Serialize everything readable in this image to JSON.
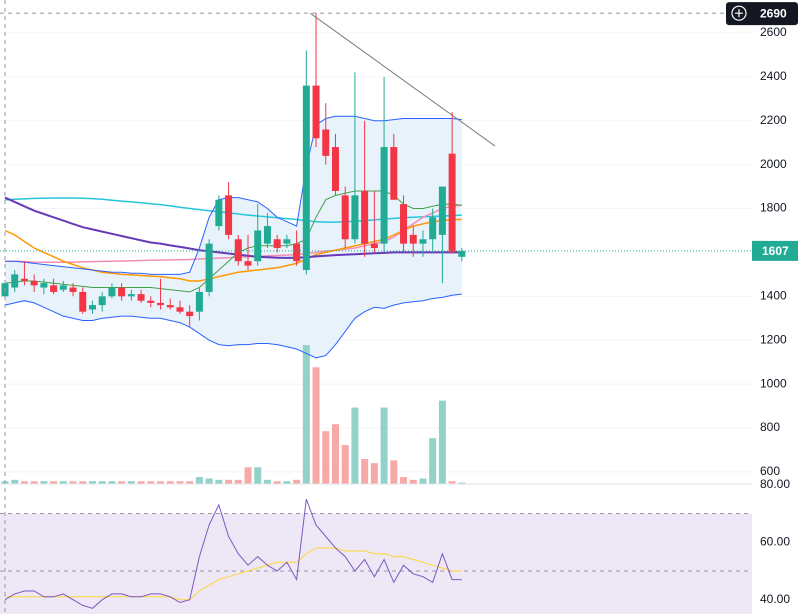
{
  "chart_data": {
    "type": "candlestick",
    "categories": [
      null,
      null,
      null,
      null,
      null,
      null,
      null,
      null,
      null,
      null,
      null,
      null,
      null,
      null,
      null,
      null,
      null,
      null,
      null,
      null,
      null,
      null,
      null,
      null,
      null,
      null,
      null,
      null,
      null,
      null,
      null,
      null,
      null,
      null,
      null,
      null,
      null,
      null,
      null,
      null,
      null,
      null,
      null,
      null,
      null,
      null,
      null,
      null
    ],
    "open": [
      1400,
      1440,
      1480,
      1470,
      1440,
      1450,
      1430,
      1440,
      1420,
      1340,
      1360,
      1400,
      1440,
      1400,
      1410,
      1380,
      1370,
      1360,
      1350,
      1330,
      1330,
      1420,
      1720,
      1860,
      1660,
      1560,
      1560,
      1640,
      1660,
      1640,
      1640,
      1520,
      2360,
      2160,
      2080,
      1860,
      1660,
      1880,
      1640,
      1640,
      2080,
      1820,
      1680,
      1640,
      1660,
      1680,
      2050,
      1580
    ],
    "high": [
      1470,
      1520,
      1560,
      1500,
      1480,
      1480,
      1470,
      1460,
      1440,
      1380,
      1420,
      1460,
      1460,
      1430,
      1430,
      1400,
      1480,
      1390,
      1380,
      1360,
      1440,
      1660,
      1860,
      1920,
      1680,
      1680,
      1820,
      1780,
      1680,
      1680,
      1700,
      2520,
      2690,
      2280,
      2140,
      1900,
      2420,
      2200,
      1880,
      2400,
      2140,
      1860,
      1720,
      1700,
      1800,
      1900,
      2240,
      1620
    ],
    "low": [
      1390,
      1420,
      1450,
      1420,
      1410,
      1410,
      1420,
      1400,
      1320,
      1320,
      1330,
      1390,
      1380,
      1380,
      1370,
      1350,
      1340,
      1340,
      1320,
      1260,
      1290,
      1400,
      1700,
      1660,
      1540,
      1520,
      1540,
      1620,
      1600,
      1620,
      1540,
      1500,
      2080,
      2000,
      1860,
      1620,
      1640,
      1580,
      1600,
      1600,
      1840,
      1600,
      1580,
      1580,
      1600,
      1460,
      1600,
      1560
    ],
    "close": [
      1460,
      1500,
      1470,
      1450,
      1460,
      1420,
      1450,
      1420,
      1330,
      1360,
      1400,
      1440,
      1400,
      1410,
      1380,
      1370,
      1360,
      1350,
      1330,
      1310,
      1420,
      1640,
      1840,
      1680,
      1560,
      1540,
      1700,
      1720,
      1620,
      1660,
      1560,
      2360,
      2120,
      2040,
      1880,
      1660,
      1860,
      1640,
      1620,
      2080,
      1840,
      1640,
      1640,
      1660,
      1760,
      1900,
      1600,
      1607
    ],
    "up_color": "#22ab94",
    "down_color": "#f23645",
    "ylim": [
      545,
      2750
    ],
    "yticks": [
      600,
      800,
      1000,
      1200,
      1400,
      1600,
      1800,
      2000,
      2200,
      2400,
      2600
    ],
    "grid": true,
    "bollinger": {
      "upper": [
        1560,
        1560,
        1555,
        1550,
        1545,
        1540,
        1535,
        1530,
        1525,
        1520,
        1515,
        1510,
        1510,
        1505,
        1505,
        1500,
        1500,
        1500,
        1500,
        1510,
        1620,
        1760,
        1840,
        1850,
        1850,
        1840,
        1830,
        1800,
        1760,
        1740,
        1720,
        1990,
        2180,
        2210,
        2220,
        2220,
        2220,
        2210,
        2200,
        2200,
        2205,
        2210,
        2210,
        2210,
        2210,
        2210,
        2210,
        2205
      ],
      "middle": [
        1460,
        1465,
        1470,
        1470,
        1465,
        1460,
        1455,
        1450,
        1445,
        1440,
        1440,
        1440,
        1440,
        1440,
        1440,
        1440,
        1435,
        1430,
        1425,
        1420,
        1440,
        1480,
        1520,
        1560,
        1600,
        1620,
        1630,
        1630,
        1630,
        1630,
        1640,
        1660,
        1760,
        1840,
        1860,
        1870,
        1880,
        1880,
        1880,
        1880,
        1860,
        1820,
        1800,
        1800,
        1810,
        1820,
        1820,
        1815
      ],
      "lower": [
        1360,
        1370,
        1380,
        1370,
        1350,
        1330,
        1310,
        1300,
        1290,
        1290,
        1300,
        1305,
        1310,
        1310,
        1305,
        1300,
        1300,
        1290,
        1280,
        1260,
        1230,
        1200,
        1180,
        1175,
        1180,
        1180,
        1185,
        1185,
        1180,
        1170,
        1160,
        1140,
        1120,
        1130,
        1180,
        1240,
        1300,
        1330,
        1350,
        1345,
        1360,
        1370,
        1375,
        1380,
        1390,
        1395,
        1405,
        1410
      ],
      "color": "#2962ff",
      "middle_color": "#43a047",
      "fill": "#e8f2fb"
    },
    "overlays": [
      {
        "color": "#26c6da",
        "values": [
          1840,
          1842,
          1844,
          1846,
          1847,
          1848,
          1848,
          1848,
          1847,
          1845,
          1842,
          1838,
          1834,
          1830,
          1826,
          1822,
          1818,
          1812,
          1806,
          1800,
          1795,
          1790,
          1785,
          1780,
          1775,
          1770,
          1766,
          1762,
          1758,
          1754,
          1750,
          1745,
          1740,
          1738,
          1738,
          1740,
          1742,
          1745,
          1748,
          1752,
          1755,
          1758,
          1760,
          1762,
          1764,
          1766,
          1768,
          1770
        ]
      },
      {
        "color": "#f48fb1",
        "values": [
          1560,
          1560,
          1558,
          1556,
          1555,
          1555,
          1555,
          1556,
          1557,
          1558,
          1559,
          1560,
          1561,
          1562,
          1563,
          1564,
          1565,
          1566,
          1567,
          1568,
          1570,
          1572,
          1574,
          1576,
          1578,
          1580,
          1582,
          1584,
          1586,
          1588,
          1590,
          1595,
          1600,
          1605,
          1610,
          1615,
          1620,
          1630,
          1640,
          1650,
          1670,
          1700,
          1730,
          1760,
          1780,
          1800,
          1810,
          1815
        ]
      },
      {
        "color": "#ff9800",
        "values": [
          1700,
          1680,
          1650,
          1620,
          1600,
          1580,
          1560,
          1545,
          1530,
          1520,
          1510,
          1505,
          1500,
          1498,
          1495,
          1492,
          1490,
          1485,
          1480,
          1470,
          1470,
          1480,
          1490,
          1500,
          1510,
          1515,
          1520,
          1525,
          1530,
          1540,
          1550,
          1570,
          1590,
          1600,
          1610,
          1620,
          1630,
          1640,
          1650,
          1660,
          1680,
          1700,
          1720,
          1730,
          1740,
          1745,
          1750,
          1750
        ]
      },
      {
        "color": "#673ab7",
        "values": [
          1850,
          1830,
          1810,
          1790,
          1775,
          1760,
          1745,
          1730,
          1715,
          1705,
          1695,
          1685,
          1675,
          1665,
          1655,
          1645,
          1640,
          1632,
          1625,
          1618,
          1610,
          1605,
          1600,
          1595,
          1590,
          1585,
          1580,
          1578,
          1576,
          1575,
          1576,
          1578,
          1582,
          1585,
          1588,
          1590,
          1592,
          1594,
          1596,
          1598,
          1600,
          1600,
          1600,
          1600,
          1600,
          1600,
          1600,
          1600
        ]
      }
    ],
    "volume": {
      "values": [
        2,
        3,
        2,
        2,
        2,
        2,
        2,
        2,
        2,
        2,
        2,
        2,
        2,
        2,
        2,
        2,
        2,
        2,
        2,
        2,
        5,
        4,
        3,
        3,
        3,
        12,
        12,
        3,
        2,
        2,
        3,
        100,
        84,
        38,
        43,
        28,
        55,
        18,
        15,
        55,
        17,
        5,
        3,
        4,
        33,
        60,
        2,
        1
      ],
      "up_color": "#92d2c8",
      "down_color": "#f7a9a7"
    },
    "trendline": {
      "x": [
        31.4,
        50.4
      ],
      "values": [
        2690,
        2085
      ],
      "color": "#787b86"
    },
    "rsi": {
      "values": [
        40,
        42,
        43,
        43,
        41,
        41,
        42,
        40,
        38,
        37,
        40,
        42,
        42,
        41,
        41,
        42,
        42,
        41,
        39,
        40,
        55,
        66,
        73,
        62,
        56,
        52,
        55,
        52,
        50,
        53,
        47,
        75,
        66,
        62,
        58,
        55,
        50,
        54,
        48,
        54,
        46,
        52,
        49,
        48,
        46,
        56,
        47,
        47
      ],
      "color": "#7e57c2",
      "ma_values": [
        41,
        41,
        41,
        41,
        41,
        41,
        41,
        41,
        41,
        41,
        41,
        41,
        41,
        41,
        41,
        41,
        41,
        41,
        40,
        40,
        43,
        45,
        47,
        48,
        49,
        50,
        51,
        52,
        53,
        53,
        53,
        56,
        58,
        58,
        58,
        57,
        57,
        57,
        56,
        56,
        55,
        55,
        54,
        53,
        52,
        51,
        50,
        50
      ],
      "ma_color": "#fdd835",
      "ylim": [
        35,
        80.3
      ],
      "yticks": [
        {
          "value": 80,
          "label": "80.00"
        },
        {
          "value": 60,
          "label": "60.00"
        },
        {
          "value": 40,
          "label": "40.00"
        }
      ],
      "band": [
        30,
        70
      ],
      "midline": 50,
      "band_fill": "#ede7f6"
    }
  }
}
